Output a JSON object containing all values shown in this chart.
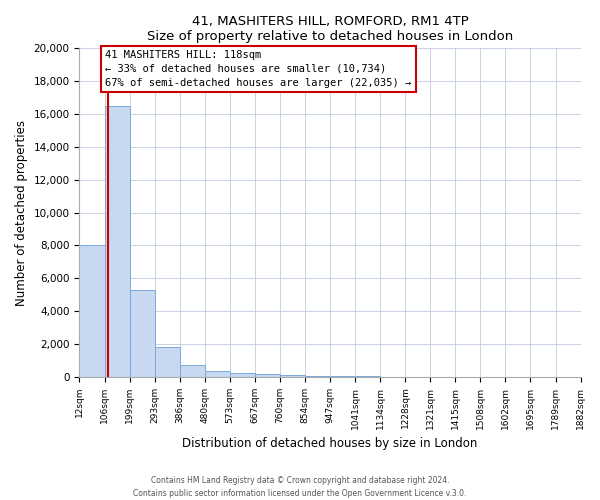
{
  "title": "41, MASHITERS HILL, ROMFORD, RM1 4TP",
  "subtitle": "Size of property relative to detached houses in London",
  "xlabel": "Distribution of detached houses by size in London",
  "ylabel": "Number of detached properties",
  "bin_edges": [
    12,
    106,
    199,
    293,
    386,
    480,
    573,
    667,
    760,
    854,
    947,
    1041,
    1134,
    1228,
    1321,
    1415,
    1508,
    1602,
    1695,
    1789,
    1882
  ],
  "bar_heights": [
    8050,
    16500,
    5300,
    1800,
    700,
    350,
    250,
    150,
    100,
    50,
    30,
    20,
    15,
    10,
    5,
    5,
    3,
    2,
    1,
    1
  ],
  "bar_color": "#c8d8f0",
  "bar_edge_color": "#7aabdc",
  "property_size": 118,
  "red_line_color": "#cc0000",
  "annotation_title": "41 MASHITERS HILL: 118sqm",
  "annotation_line1": "← 33% of detached houses are smaller (10,734)",
  "annotation_line2": "67% of semi-detached houses are larger (22,035) →",
  "annotation_box_color": "#ffffff",
  "annotation_box_edge": "#cc0000",
  "ylim": [
    0,
    20000
  ],
  "yticks": [
    0,
    2000,
    4000,
    6000,
    8000,
    10000,
    12000,
    14000,
    16000,
    18000,
    20000
  ],
  "footer1": "Contains HM Land Registry data © Crown copyright and database right 2024.",
  "footer2": "Contains public sector information licensed under the Open Government Licence v.3.0.",
  "fig_background_color": "#ffffff",
  "plot_background_color": "#ffffff",
  "grid_color": "#c0cce0"
}
